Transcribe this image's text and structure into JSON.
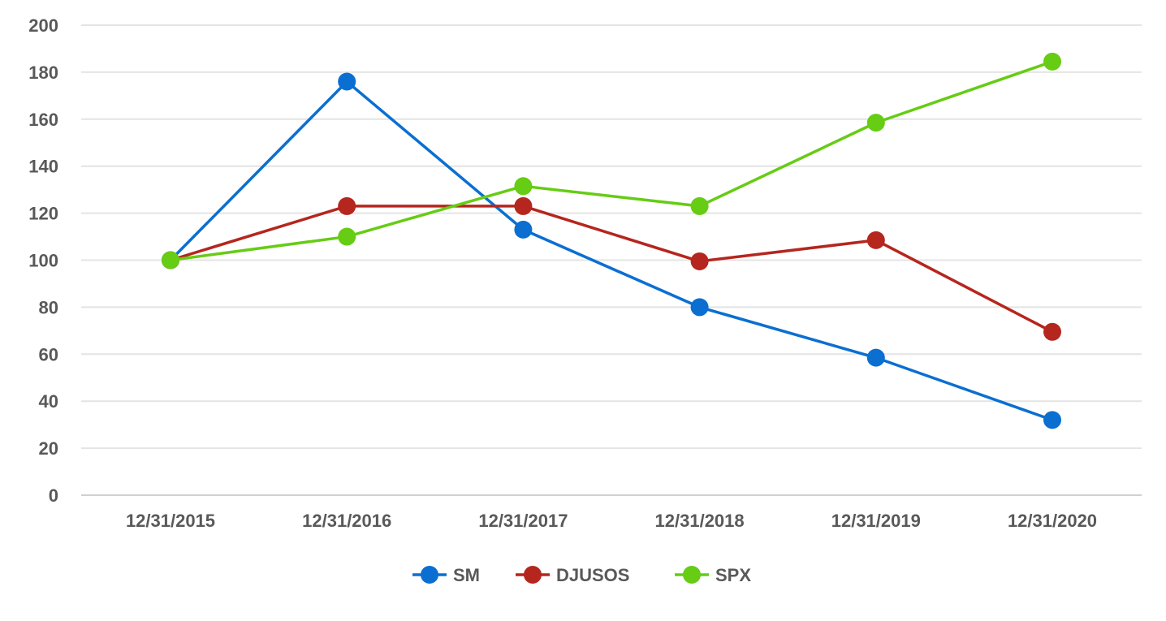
{
  "chart_data": {
    "type": "line",
    "categories": [
      "12/31/2015",
      "12/31/2016",
      "12/31/2017",
      "12/31/2018",
      "12/31/2019",
      "12/31/2020"
    ],
    "series": [
      {
        "name": "SM",
        "color": "#0a6fd1",
        "values": [
          100,
          176,
          113,
          80,
          58.5,
          32
        ]
      },
      {
        "name": "DJUSOS",
        "color": "#b5261e",
        "values": [
          100,
          123,
          123,
          99.5,
          108.5,
          69.5
        ]
      },
      {
        "name": "SPX",
        "color": "#66cc14",
        "values": [
          100,
          110,
          131.5,
          123,
          158.5,
          184.5
        ]
      }
    ],
    "ylim": [
      0,
      200
    ],
    "yticks": [
      0,
      20,
      40,
      60,
      80,
      100,
      120,
      140,
      160,
      180,
      200
    ],
    "grid": true,
    "legend": "bottom"
  }
}
